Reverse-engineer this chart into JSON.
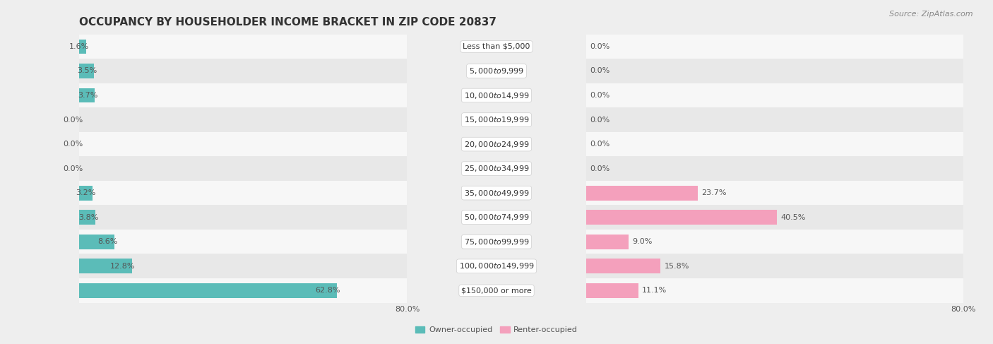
{
  "title": "OCCUPANCY BY HOUSEHOLDER INCOME BRACKET IN ZIP CODE 20837",
  "source": "Source: ZipAtlas.com",
  "categories": [
    "Less than $5,000",
    "$5,000 to $9,999",
    "$10,000 to $14,999",
    "$15,000 to $19,999",
    "$20,000 to $24,999",
    "$25,000 to $34,999",
    "$35,000 to $49,999",
    "$50,000 to $74,999",
    "$75,000 to $99,999",
    "$100,000 to $149,999",
    "$150,000 or more"
  ],
  "owner_values": [
    1.6,
    3.5,
    3.7,
    0.0,
    0.0,
    0.0,
    3.2,
    3.8,
    8.6,
    12.8,
    62.8
  ],
  "renter_values": [
    0.0,
    0.0,
    0.0,
    0.0,
    0.0,
    0.0,
    23.7,
    40.5,
    9.0,
    15.8,
    11.1
  ],
  "owner_color": "#5bbcb8",
  "renter_color": "#f4a0bc",
  "label_color": "#555555",
  "title_color": "#333333",
  "background_color": "#eeeeee",
  "row_bg_colors": [
    "#f7f7f7",
    "#e8e8e8"
  ],
  "xlim": 80.0,
  "legend_labels": [
    "Owner-occupied",
    "Renter-occupied"
  ],
  "title_fontsize": 11,
  "label_fontsize": 8,
  "category_fontsize": 8,
  "tick_fontsize": 8,
  "source_fontsize": 8
}
